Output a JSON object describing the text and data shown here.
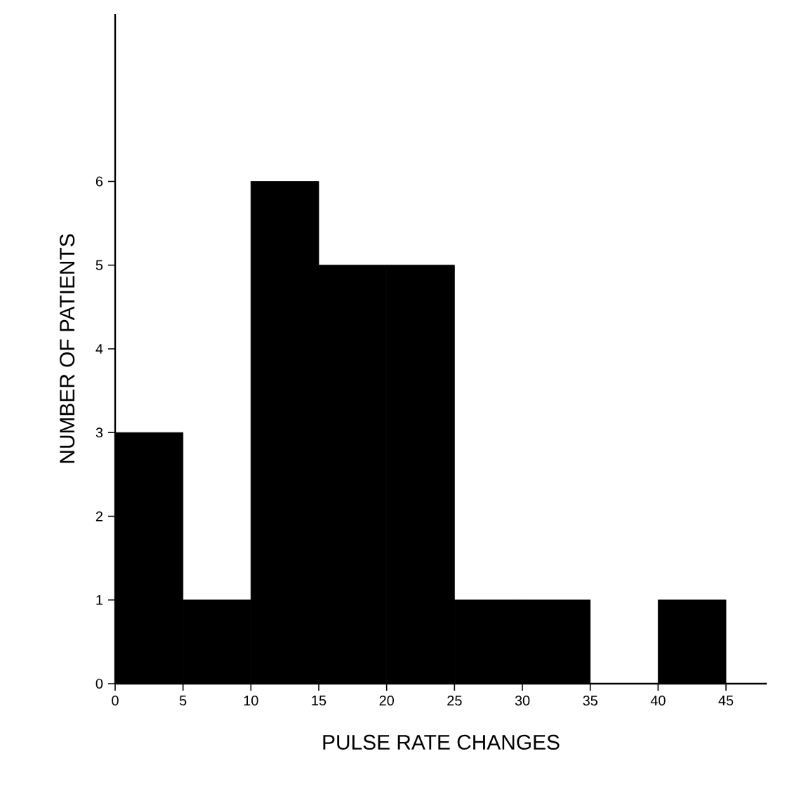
{
  "chart_data": {
    "type": "histogram",
    "xlabel": "PULSE RATE CHANGES",
    "ylabel": "NUMBER OF PATIENTS",
    "bins": [
      0,
      5,
      10,
      15,
      20,
      25,
      30,
      35,
      40,
      45
    ],
    "values": [
      3,
      1,
      6,
      5,
      5,
      1,
      1,
      0,
      1
    ],
    "color": "#000000",
    "xlim": [
      0,
      48
    ],
    "ylim": [
      0,
      8
    ],
    "xticks": [
      0,
      5,
      10,
      15,
      20,
      25,
      30,
      35,
      40,
      45
    ],
    "yticks": [
      0,
      1,
      2,
      3,
      4,
      5,
      6
    ]
  }
}
